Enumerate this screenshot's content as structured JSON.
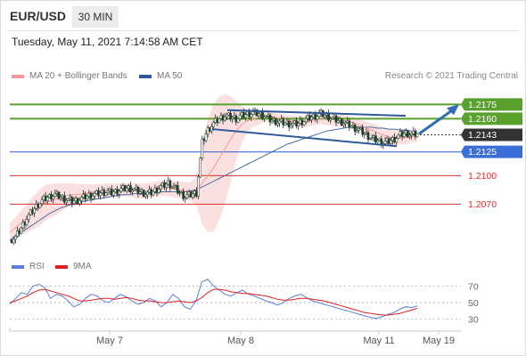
{
  "header": {
    "symbol": "EUR/USD",
    "timeframe": "30 MIN",
    "timestamp": "Tuesday, May 11, 2021 7:14:58 AM CET"
  },
  "legend": {
    "ma20_label": "MA 20 + Bollinger Bands",
    "ma50_label": "MA 50",
    "credit": "Research © 2021 Trading Central"
  },
  "rsi_legend": {
    "rsi_label": "RSI",
    "ma_label": "9MA"
  },
  "colors": {
    "resistance": "#5aa02c",
    "support_pivot": "#3b6fd8",
    "support": "#d93030",
    "current": "#333333",
    "bollinger": "#fbdddd",
    "ma20": "#f29a9a",
    "ma50": "#4a6ea8",
    "trendline": "#2e5a9a",
    "rsi": "#5b7fd6",
    "rsi_ma": "#e02020"
  },
  "chart_data": [
    {
      "type": "candlestick",
      "title": "EUR/USD 30 MIN",
      "x_labels": [
        "May 7",
        "May 8",
        "May 11",
        "May 19"
      ],
      "ylim": [
        1.203,
        1.2195
      ],
      "levels": [
        {
          "value": 1.2175,
          "label": "1.2175",
          "kind": "resistance"
        },
        {
          "value": 1.216,
          "label": "1.2160",
          "kind": "resistance"
        },
        {
          "value": 1.2143,
          "label": "1.2143",
          "kind": "current"
        },
        {
          "value": 1.2125,
          "label": "1.2125",
          "kind": "pivot"
        },
        {
          "value": 1.21,
          "label": "1.2100",
          "kind": "support"
        },
        {
          "value": 1.207,
          "label": "1.2070",
          "kind": "support"
        }
      ],
      "close_path": [
        1.2032,
        1.2035,
        1.2045,
        1.2055,
        1.2063,
        1.207,
        1.2075,
        1.2078,
        1.208,
        1.2077,
        1.2075,
        1.2073,
        1.2074,
        1.2077,
        1.2079,
        1.208,
        1.2082,
        1.2083,
        1.2082,
        1.2084,
        1.2086,
        1.2087,
        1.2085,
        1.2083,
        1.2081,
        1.2082,
        1.2086,
        1.2089,
        1.2092,
        1.2088,
        1.2082,
        1.2078,
        1.208,
        1.2082,
        1.2135,
        1.2148,
        1.2155,
        1.216,
        1.2163,
        1.2162,
        1.216,
        1.2163,
        1.2165,
        1.2166,
        1.2165,
        1.2163,
        1.2159,
        1.2157,
        1.2156,
        1.2155,
        1.2154,
        1.2155,
        1.2158,
        1.2161,
        1.2163,
        1.2165,
        1.2163,
        1.216,
        1.2158,
        1.2156,
        1.2153,
        1.215,
        1.2147,
        1.2143,
        1.2139,
        1.2137,
        1.2135,
        1.2136,
        1.2139,
        1.2143,
        1.2145,
        1.2143,
        1.2144
      ],
      "ma20": [
        1.204,
        1.2045,
        1.205,
        1.2055,
        1.206,
        1.2065,
        1.207,
        1.2073,
        1.2075,
        1.2077,
        1.2079,
        1.208,
        1.208,
        1.2081,
        1.2082,
        1.2083,
        1.2084,
        1.2085,
        1.2085,
        1.2085,
        1.2085,
        1.2085,
        1.2084,
        1.2084,
        1.2084,
        1.2085,
        1.2086,
        1.2087,
        1.2087,
        1.2086,
        1.2085,
        1.2084,
        1.2083,
        1.2084,
        1.2092,
        1.21,
        1.2108,
        1.2118,
        1.2128,
        1.2138,
        1.2147,
        1.2154,
        1.2158,
        1.216,
        1.2161,
        1.2162,
        1.2162,
        1.2161,
        1.216,
        1.2159,
        1.2158,
        1.2157,
        1.2157,
        1.2158,
        1.2159,
        1.216,
        1.216,
        1.216,
        1.2159,
        1.2158,
        1.2157,
        1.2155,
        1.2153,
        1.215,
        1.2148,
        1.2145,
        1.2143,
        1.2141,
        1.214,
        1.214,
        1.214,
        1.2141,
        1.2141
      ],
      "bb_upper": [
        1.205,
        1.2056,
        1.2063,
        1.207,
        1.2077,
        1.2084,
        1.2089,
        1.2091,
        1.2092,
        1.2092,
        1.2092,
        1.2092,
        1.2091,
        1.2091,
        1.2091,
        1.2091,
        1.2091,
        1.2092,
        1.2092,
        1.2092,
        1.2092,
        1.2092,
        1.2092,
        1.2092,
        1.2092,
        1.2093,
        1.2094,
        1.2095,
        1.2096,
        1.2095,
        1.2094,
        1.2093,
        1.2093,
        1.21,
        1.2135,
        1.216,
        1.2175,
        1.2183,
        1.2186,
        1.2184,
        1.2179,
        1.2173,
        1.217,
        1.2169,
        1.2168,
        1.2168,
        1.2167,
        1.2166,
        1.2165,
        1.2164,
        1.2163,
        1.2163,
        1.2163,
        1.2164,
        1.2165,
        1.2166,
        1.2167,
        1.2167,
        1.2166,
        1.2165,
        1.2163,
        1.2161,
        1.2159,
        1.2157,
        1.2155,
        1.2153,
        1.2151,
        1.2149,
        1.2148,
        1.2147,
        1.2147,
        1.2147,
        1.2147
      ],
      "bb_lower": [
        1.203,
        1.2034,
        1.2037,
        1.204,
        1.2043,
        1.2046,
        1.2051,
        1.2055,
        1.2058,
        1.2062,
        1.2066,
        1.2068,
        1.2069,
        1.2071,
        1.2073,
        1.2075,
        1.2077,
        1.2078,
        1.2078,
        1.2078,
        1.2078,
        1.2078,
        1.2076,
        1.2076,
        1.2076,
        1.2077,
        1.2078,
        1.2079,
        1.2078,
        1.2077,
        1.2076,
        1.2075,
        1.2073,
        1.2068,
        1.2049,
        1.204,
        1.2041,
        1.2053,
        1.207,
        1.2092,
        1.2115,
        1.2135,
        1.2146,
        1.2151,
        1.2154,
        1.2156,
        1.2157,
        1.2156,
        1.2155,
        1.2154,
        1.2153,
        1.2151,
        1.2151,
        1.2152,
        1.2153,
        1.2154,
        1.2153,
        1.2153,
        1.2152,
        1.2151,
        1.2151,
        1.2149,
        1.2147,
        1.2143,
        1.2141,
        1.2137,
        1.2135,
        1.2133,
        1.2132,
        1.2133,
        1.2133,
        1.2135,
        1.2135
      ],
      "ma50": [
        1.2032,
        1.2036,
        1.204,
        1.2044,
        1.2048,
        1.2052,
        1.2056,
        1.206,
        1.2063,
        1.2066,
        1.2068,
        1.207,
        1.2071,
        1.2073,
        1.2074,
        1.2075,
        1.2076,
        1.2077,
        1.2078,
        1.2079,
        1.208,
        1.208,
        1.2081,
        1.2081,
        1.2081,
        1.2082,
        1.2082,
        1.2083,
        1.2083,
        1.2083,
        1.2083,
        1.2083,
        1.2084,
        1.2085,
        1.2088,
        1.2091,
        1.2094,
        1.2097,
        1.21,
        1.2103,
        1.2106,
        1.2109,
        1.2112,
        1.2115,
        1.2118,
        1.2121,
        1.2124,
        1.2127,
        1.213,
        1.2133,
        1.2135,
        1.2137,
        1.2139,
        1.2141,
        1.2143,
        1.2145,
        1.2147,
        1.2148,
        1.2149,
        1.215,
        1.2151,
        1.2151,
        1.2151,
        1.2151,
        1.2151,
        1.215,
        1.215,
        1.2149,
        1.2149,
        1.2148,
        1.2148,
        1.2147,
        1.2147
      ]
    },
    {
      "type": "line",
      "title": "RSI",
      "ylim": [
        20,
        80
      ],
      "yticks": [
        70,
        50,
        30
      ],
      "rsi": [
        48,
        55,
        62,
        60,
        70,
        72,
        68,
        55,
        60,
        58,
        52,
        45,
        48,
        55,
        60,
        58,
        52,
        50,
        55,
        60,
        57,
        52,
        48,
        50,
        55,
        52,
        45,
        50,
        60,
        55,
        45,
        42,
        52,
        75,
        78,
        70,
        65,
        60,
        58,
        62,
        65,
        60,
        58,
        55,
        52,
        50,
        47,
        50,
        55,
        58,
        60,
        56,
        52,
        50,
        48,
        46,
        44,
        42,
        40,
        38,
        36,
        34,
        32,
        31,
        33,
        36,
        38,
        42,
        45,
        44,
        46
      ],
      "rsi_ma": [
        50,
        52,
        55,
        58,
        62,
        65,
        66,
        64,
        62,
        60,
        58,
        55,
        52,
        52,
        53,
        54,
        55,
        55,
        54,
        55,
        56,
        55,
        53,
        52,
        52,
        51,
        50,
        50,
        51,
        52,
        51,
        50,
        52,
        56,
        62,
        66,
        66,
        65,
        63,
        62,
        61,
        61,
        60,
        59,
        58,
        56,
        54,
        53,
        53,
        54,
        55,
        55,
        54,
        53,
        52,
        50,
        48,
        46,
        44,
        42,
        40,
        38,
        37,
        36,
        35,
        35,
        36,
        37,
        39,
        41,
        43
      ]
    }
  ]
}
